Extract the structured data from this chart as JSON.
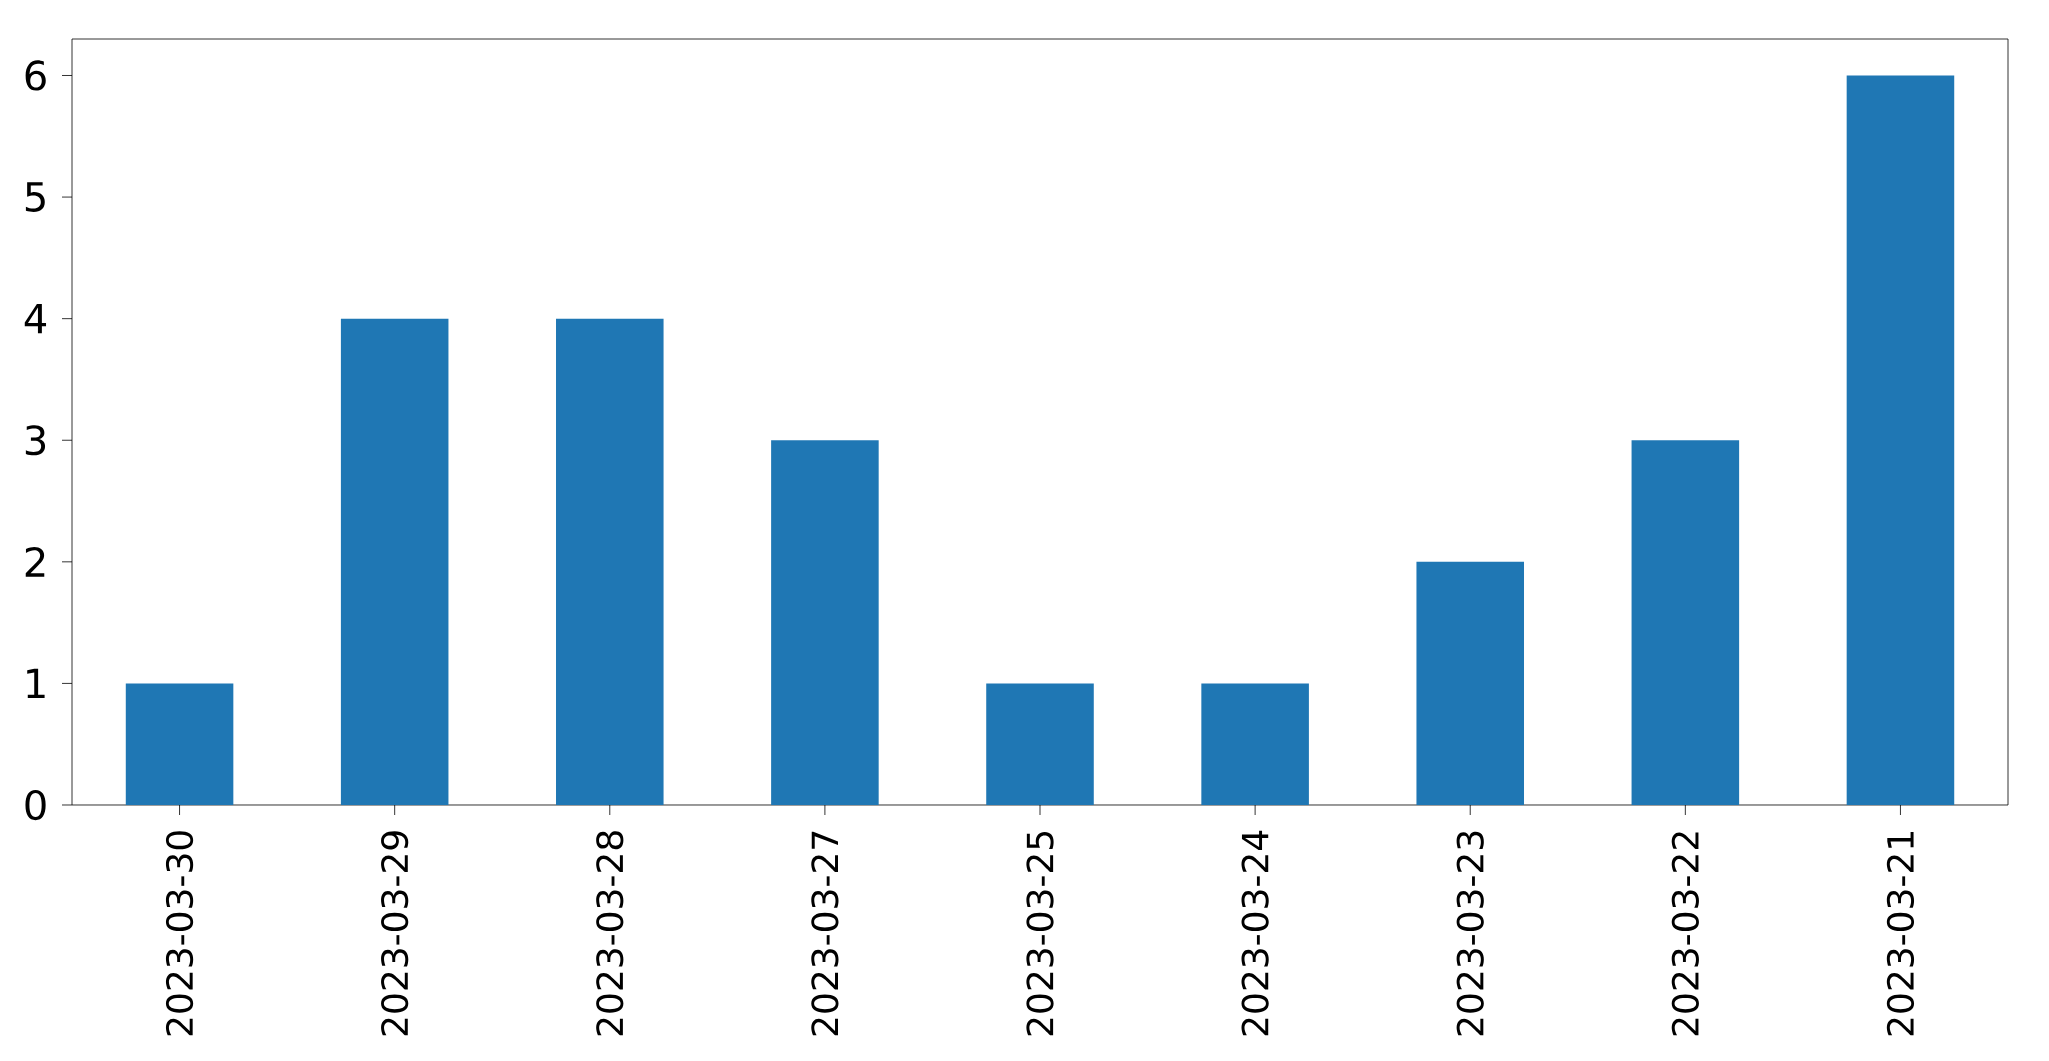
{
  "chart_data": {
    "type": "bar",
    "categories": [
      "2023-03-30",
      "2023-03-29",
      "2023-03-28",
      "2023-03-27",
      "2023-03-25",
      "2023-03-24",
      "2023-03-23",
      "2023-03-22",
      "2023-03-21"
    ],
    "values": [
      1,
      4,
      4,
      3,
      1,
      1,
      2,
      3,
      6
    ],
    "color": "#1f77b4",
    "ylim": [
      0,
      6.3
    ],
    "yticks": [
      0,
      1,
      2,
      3,
      4,
      5,
      6
    ]
  }
}
